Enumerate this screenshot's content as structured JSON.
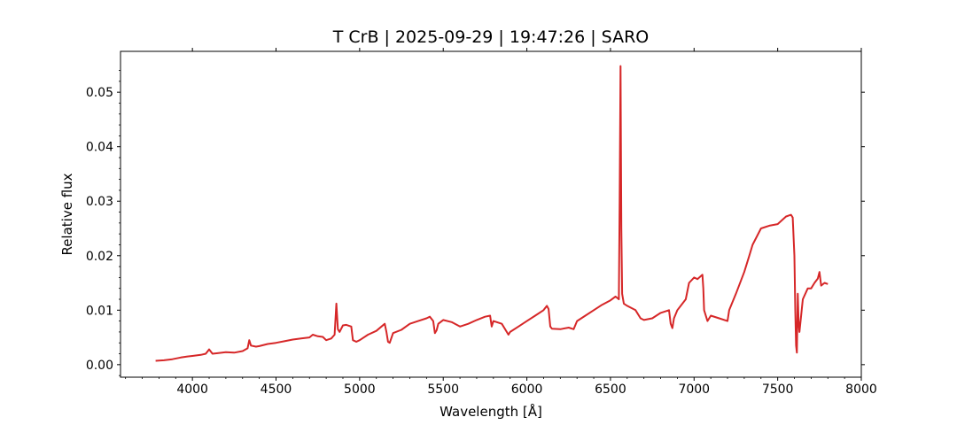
{
  "chart_data": {
    "type": "line",
    "title": "T CrB | 2025-09-29 | 19:47:26 | SARO",
    "xlabel": "Wavelength [Å]",
    "ylabel": "Relative flux",
    "xlim": [
      3570,
      8000
    ],
    "ylim": [
      -0.0023,
      0.0575
    ],
    "xticks": [
      4000,
      4500,
      5000,
      5500,
      6000,
      6500,
      7000,
      7500,
      8000
    ],
    "xtick_labels": [
      "4000",
      "4500",
      "5000",
      "5500",
      "6000",
      "6500",
      "7000",
      "7500",
      "8000"
    ],
    "yticks": [
      0.0,
      0.01,
      0.02,
      0.03,
      0.04,
      0.05
    ],
    "ytick_labels": [
      "0.00",
      "0.01",
      "0.02",
      "0.03",
      "0.04",
      "0.05"
    ],
    "grid": false,
    "series": [
      {
        "color": "#d62728",
        "x": [
          3780,
          3830,
          3880,
          3930,
          3970,
          4000,
          4050,
          4080,
          4100,
          4120,
          4150,
          4200,
          4250,
          4300,
          4330,
          4340,
          4350,
          4380,
          4400,
          4450,
          4500,
          4550,
          4600,
          4650,
          4700,
          4720,
          4750,
          4780,
          4800,
          4830,
          4850,
          4861,
          4870,
          4880,
          4900,
          4920,
          4950,
          4960,
          4980,
          5000,
          5050,
          5100,
          5150,
          5160,
          5170,
          5180,
          5200,
          5250,
          5300,
          5350,
          5400,
          5420,
          5440,
          5450,
          5460,
          5470,
          5500,
          5550,
          5600,
          5650,
          5700,
          5750,
          5780,
          5790,
          5800,
          5850,
          5880,
          5890,
          5900,
          5950,
          6000,
          6050,
          6100,
          6120,
          6130,
          6140,
          6150,
          6200,
          6250,
          6280,
          6300,
          6350,
          6400,
          6450,
          6500,
          6530,
          6550,
          6555,
          6560,
          6565,
          6570,
          6580,
          6600,
          6650,
          6680,
          6700,
          6750,
          6800,
          6850,
          6860,
          6870,
          6880,
          6900,
          6950,
          6970,
          7000,
          7020,
          7050,
          7055,
          7060,
          7080,
          7100,
          7150,
          7200,
          7210,
          7250,
          7300,
          7330,
          7350,
          7400,
          7450,
          7500,
          7550,
          7580,
          7590,
          7600,
          7605,
          7610,
          7615,
          7620,
          7625,
          7630,
          7640,
          7650,
          7680,
          7700,
          7720,
          7740,
          7750,
          7760,
          7780,
          7800
        ],
        "y": [
          0.0007,
          0.0008,
          0.001,
          0.0013,
          0.0015,
          0.0016,
          0.0018,
          0.002,
          0.0028,
          0.002,
          0.0021,
          0.0023,
          0.0022,
          0.0025,
          0.003,
          0.0045,
          0.0035,
          0.0033,
          0.0034,
          0.0038,
          0.004,
          0.0043,
          0.0046,
          0.0048,
          0.005,
          0.0055,
          0.0052,
          0.0051,
          0.0045,
          0.0048,
          0.0055,
          0.0112,
          0.0065,
          0.006,
          0.0072,
          0.0073,
          0.007,
          0.0045,
          0.0042,
          0.0045,
          0.0055,
          0.0062,
          0.0075,
          0.006,
          0.0042,
          0.004,
          0.0058,
          0.0064,
          0.0075,
          0.008,
          0.0085,
          0.0088,
          0.008,
          0.0058,
          0.0063,
          0.0075,
          0.0082,
          0.0078,
          0.007,
          0.0075,
          0.0082,
          0.0088,
          0.009,
          0.007,
          0.008,
          0.0075,
          0.006,
          0.0055,
          0.006,
          0.007,
          0.008,
          0.009,
          0.01,
          0.0108,
          0.0102,
          0.007,
          0.0066,
          0.0065,
          0.0068,
          0.0065,
          0.008,
          0.009,
          0.01,
          0.011,
          0.0118,
          0.0125,
          0.012,
          0.03,
          0.0548,
          0.025,
          0.013,
          0.0112,
          0.0108,
          0.01,
          0.0085,
          0.0082,
          0.0085,
          0.0095,
          0.01,
          0.0075,
          0.0067,
          0.0085,
          0.01,
          0.012,
          0.015,
          0.016,
          0.0157,
          0.0165,
          0.014,
          0.01,
          0.008,
          0.009,
          0.0085,
          0.008,
          0.01,
          0.013,
          0.017,
          0.02,
          0.022,
          0.025,
          0.0255,
          0.0258,
          0.0272,
          0.0275,
          0.027,
          0.02,
          0.01,
          0.0035,
          0.0022,
          0.013,
          0.008,
          0.006,
          0.009,
          0.012,
          0.014,
          0.014,
          0.015,
          0.0158,
          0.017,
          0.0145,
          0.015,
          0.0148
        ]
      }
    ]
  }
}
